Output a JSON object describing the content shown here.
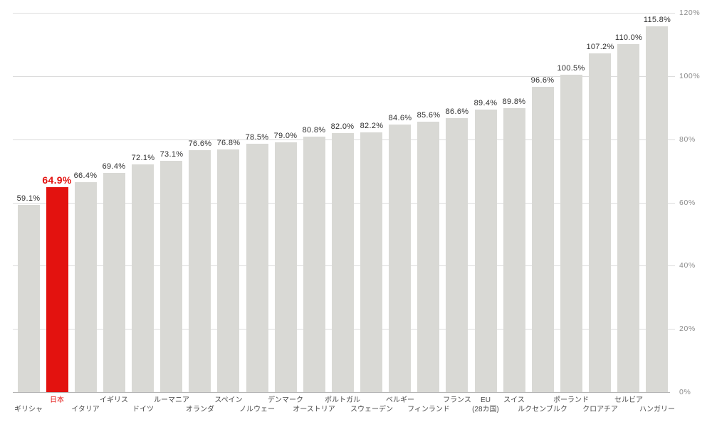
{
  "chart_data": {
    "type": "bar",
    "categories": [
      "ギリシャ",
      "日本",
      "イタリア",
      "イギリス",
      "ドイツ",
      "ルーマニア",
      "オランダ",
      "スペイン",
      "ノルウェー",
      "デンマーク",
      "オーストリア",
      "ポルトガル",
      "スウェーデン",
      "ベルギー",
      "フィンランド",
      "フランス",
      "EU\n(28カ国)",
      "スイス",
      "ルクセンブルク",
      "ポーランド",
      "クロアチア",
      "セルビア",
      "ハンガリー"
    ],
    "values": [
      59.1,
      64.9,
      66.4,
      69.4,
      72.1,
      73.1,
      76.6,
      76.8,
      78.5,
      79.0,
      80.8,
      82.0,
      82.2,
      84.6,
      85.6,
      86.6,
      89.4,
      89.8,
      96.6,
      100.5,
      107.2,
      110.0,
      115.8
    ],
    "value_labels": [
      "59.1%",
      "64.9%",
      "66.4%",
      "69.4%",
      "72.1%",
      "73.1%",
      "76.6%",
      "76.8%",
      "78.5%",
      "79.0%",
      "80.8%",
      "82.0%",
      "82.2%",
      "84.6%",
      "85.6%",
      "86.6%",
      "89.4%",
      "89.8%",
      "96.6%",
      "100.5%",
      "107.2%",
      "110.0%",
      "115.8%"
    ],
    "highlight_index": 1,
    "title": "",
    "xlabel": "",
    "ylabel": "",
    "ylim": [
      0,
      120
    ],
    "y_ticks": [
      0,
      20,
      40,
      60,
      80,
      100,
      120
    ],
    "y_tick_labels": [
      "0%",
      "20%",
      "40%",
      "60%",
      "80%",
      "100%",
      "120%"
    ],
    "grid": true,
    "legend_position": "none",
    "colors": {
      "bar": "#d9d9d5",
      "highlight_bar": "#e3120f",
      "value_label": "#2e2e2e",
      "highlight_value_label": "#e3120f",
      "category_label": "#4a4a4a",
      "highlight_category_label": "#e3120f",
      "gridline": "#dcdcdc",
      "baseline": "#b5b5b5",
      "axis_tick_label": "#8c8c8c",
      "background": "#ffffff"
    }
  }
}
